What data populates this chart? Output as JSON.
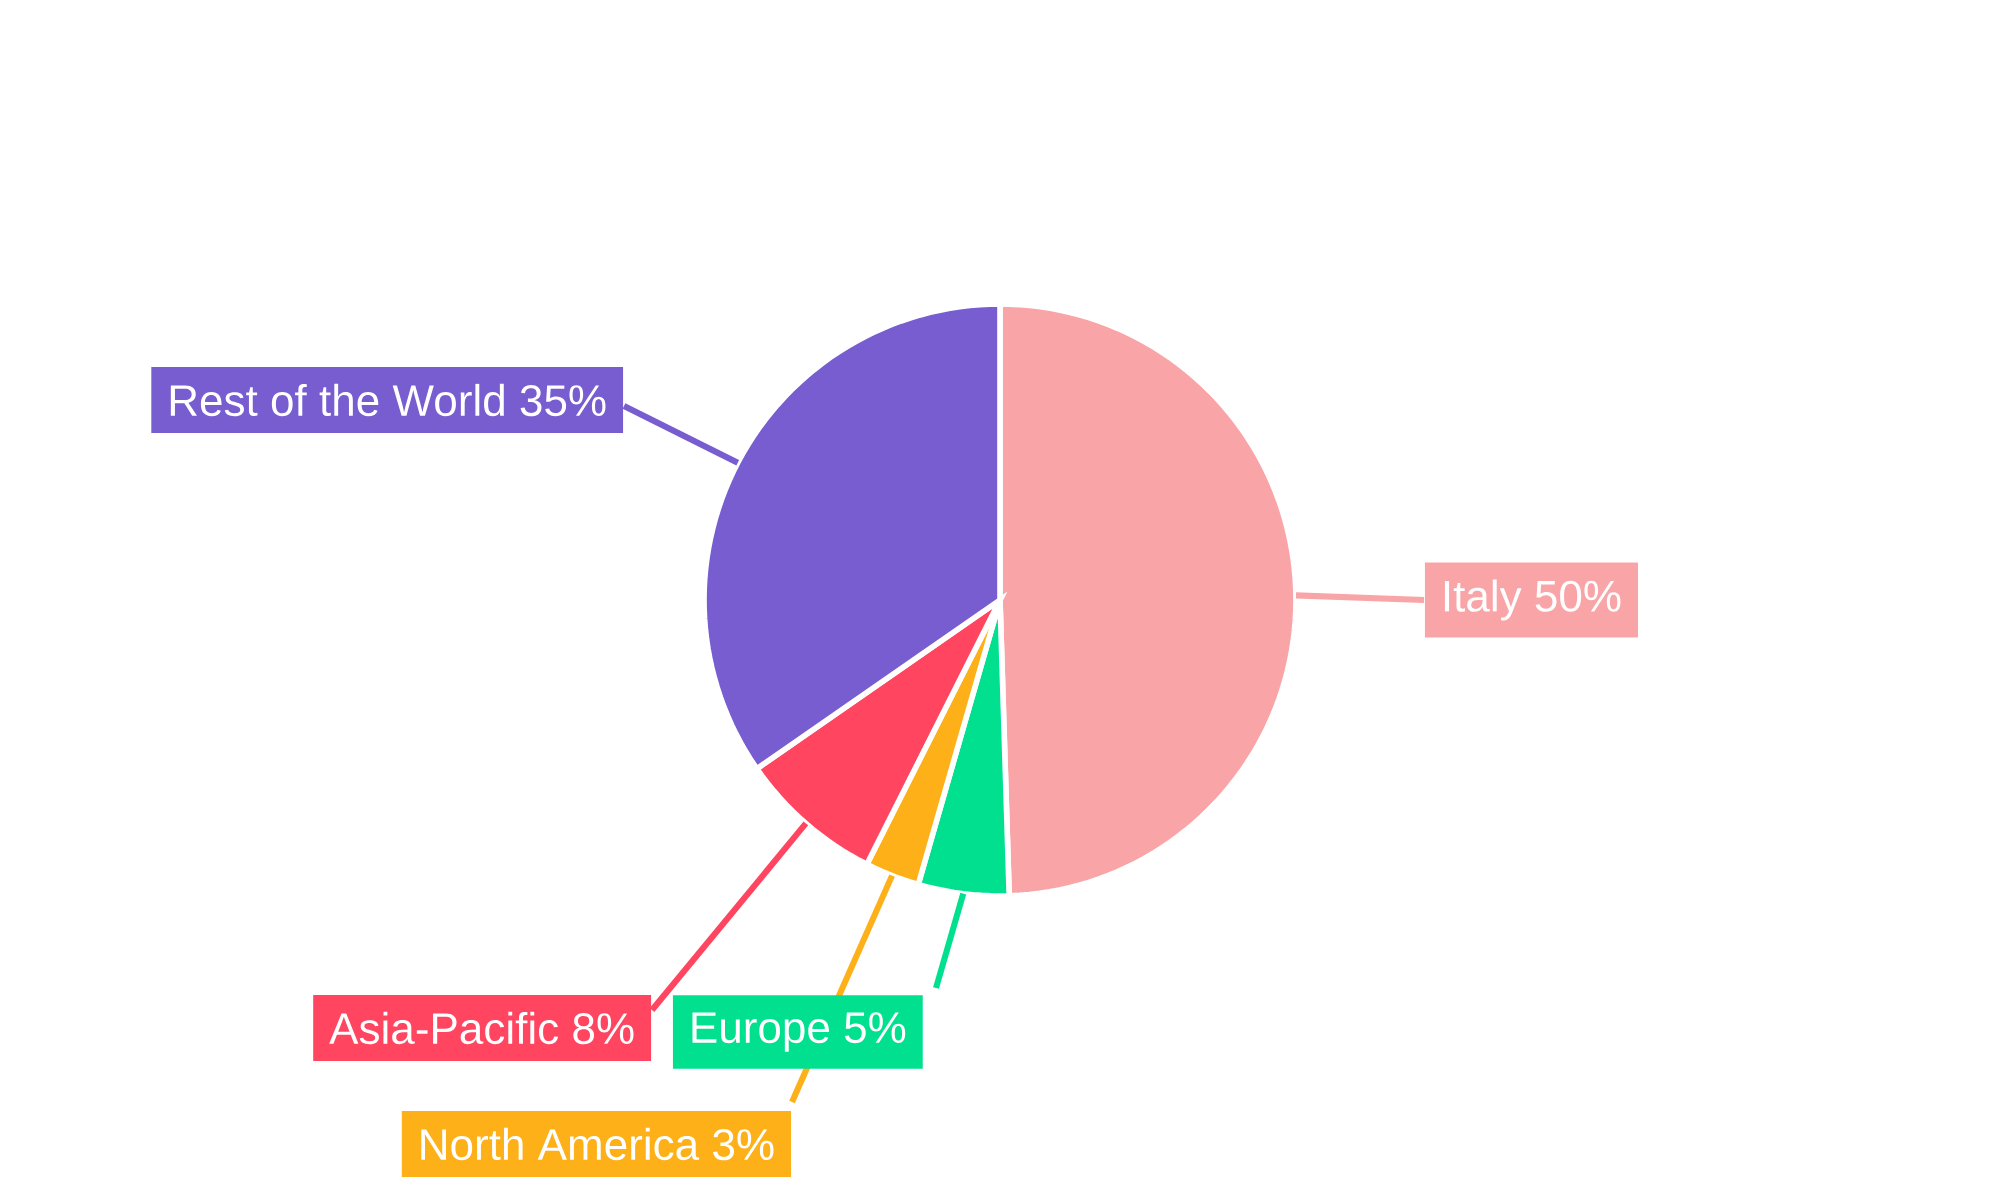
{
  "chart_data": {
    "type": "pie",
    "categories": [
      "Italy",
      "Europe",
      "North America",
      "Asia-Pacific",
      "Rest of the World"
    ],
    "values": [
      50,
      5,
      3,
      8,
      35
    ],
    "value_labels": [
      "50%",
      "5%",
      "3%",
      "8%",
      "35%"
    ],
    "colors": [
      "#f9a5a8",
      "#00e08f",
      "#feb019",
      "#ff4560",
      "#775dd0"
    ]
  }
}
